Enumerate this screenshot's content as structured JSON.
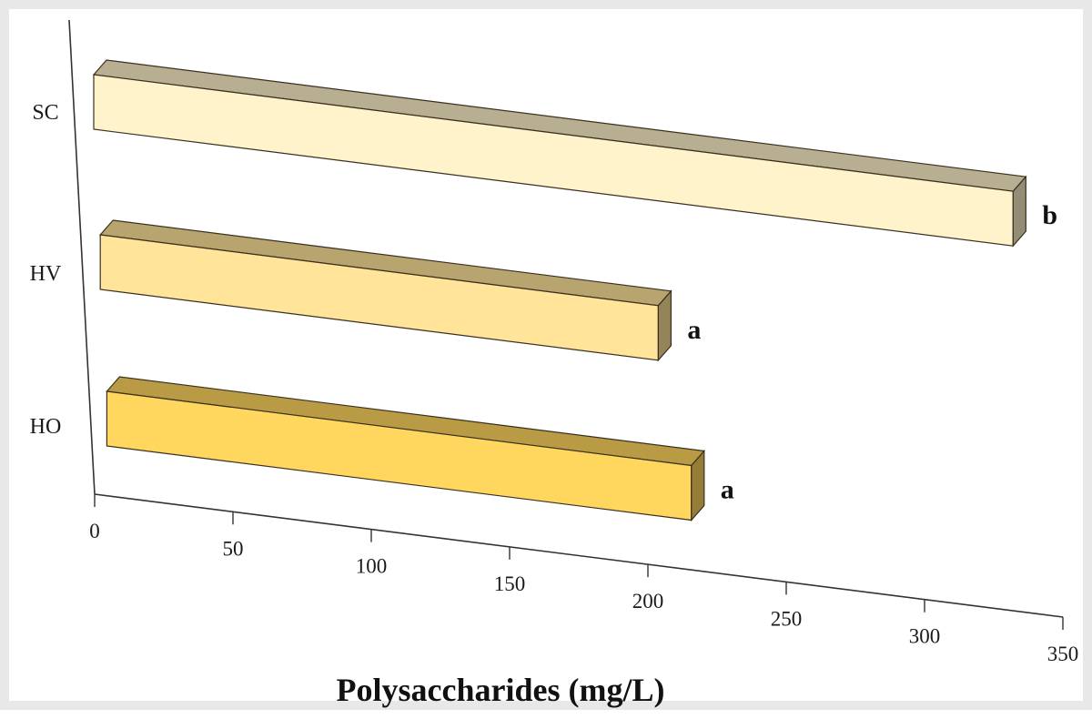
{
  "chart_data": {
    "type": "bar",
    "orientation": "horizontal",
    "style": "3d",
    "categories": [
      "SC",
      "HV",
      "HO"
    ],
    "values": [
      346,
      210,
      220
    ],
    "data_labels": [
      "b",
      "a",
      "a"
    ],
    "bar_colors": [
      "#fff3cc",
      "#ffe49a",
      "#ffd75e"
    ],
    "xlabel": "Polysaccharides (mg/L)",
    "xlim": [
      0,
      350
    ],
    "x_ticks": [
      "0",
      "50",
      "100",
      "150",
      "200",
      "250",
      "300",
      "350"
    ],
    "grid": false,
    "legend": false
  }
}
